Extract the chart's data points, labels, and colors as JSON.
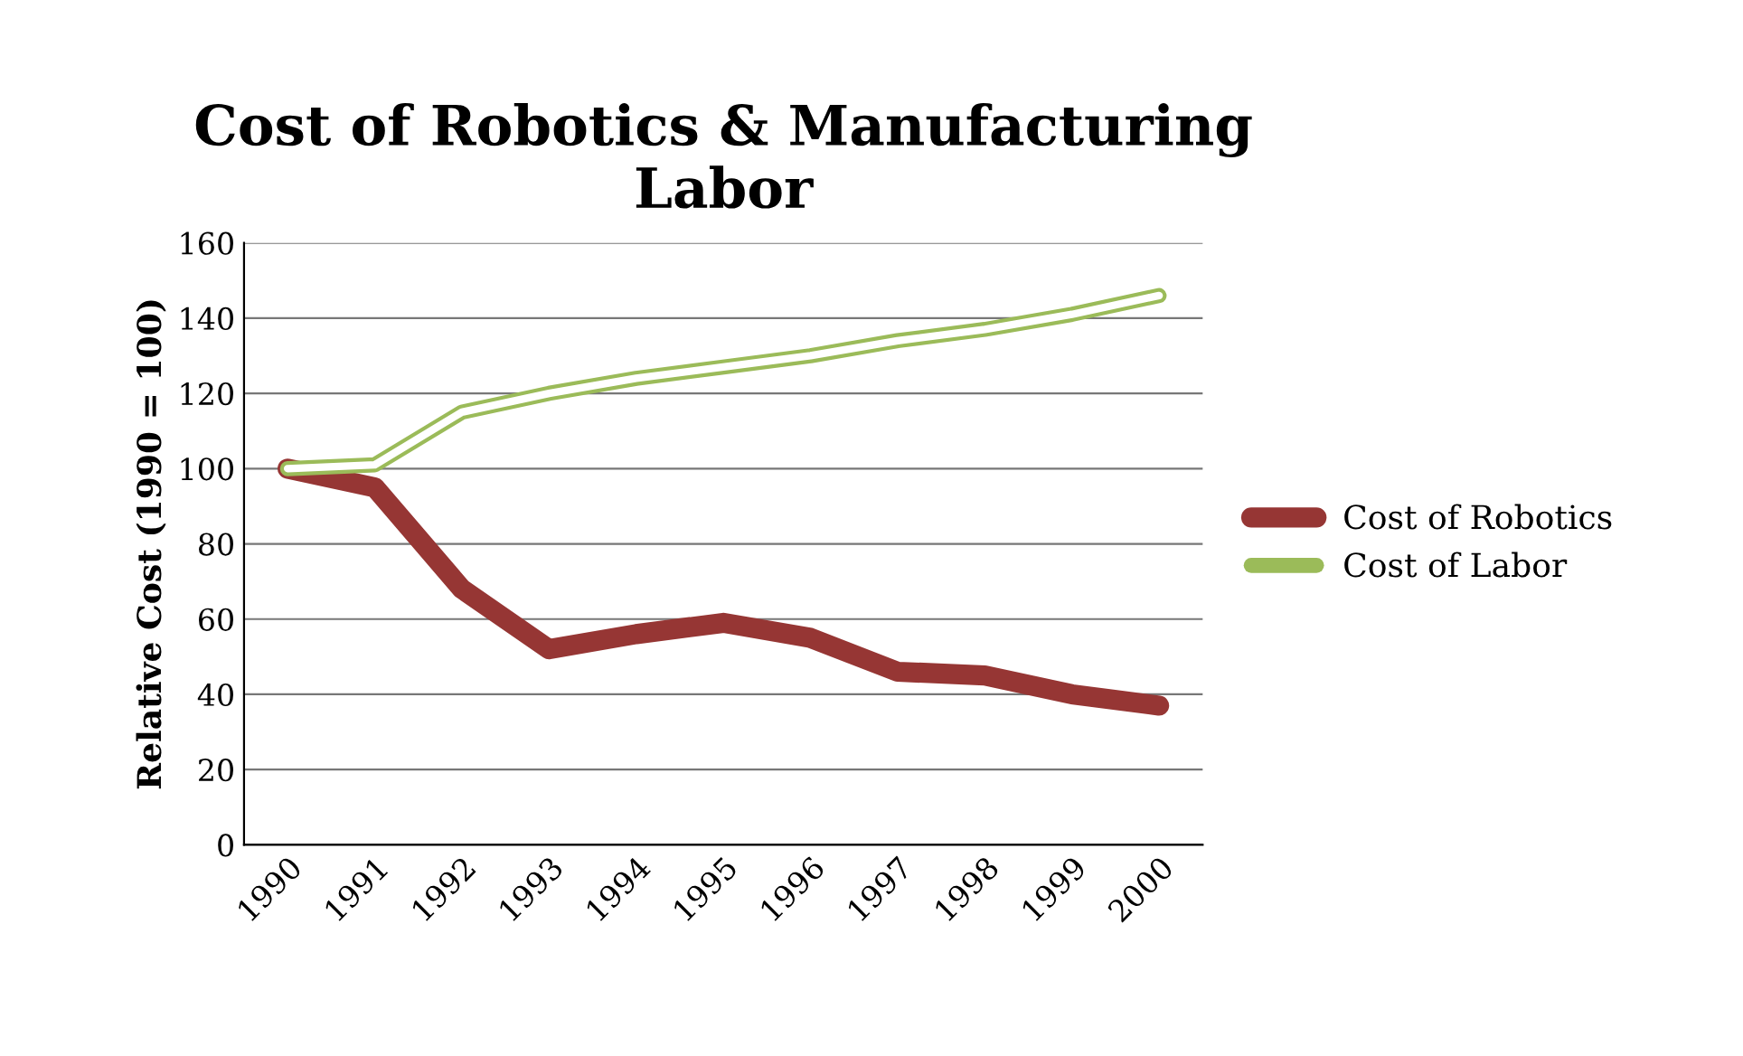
{
  "chart_data": {
    "type": "line",
    "title": "Cost of Robotics & Manufacturing\nLabor",
    "ylabel": "Relative Cost (1990 = 100)",
    "categories": [
      "1990",
      "1991",
      "1992",
      "1993",
      "1994",
      "1995",
      "1996",
      "1997",
      "1998",
      "1999",
      "2000"
    ],
    "series": [
      {
        "name": "Cost of Robotics",
        "color": "#963634",
        "values": [
          100,
          95,
          68,
          52,
          56,
          59,
          55,
          46,
          45,
          40,
          37
        ]
      },
      {
        "name": "Cost of Labor",
        "color": "#9bbb59",
        "values": [
          100,
          101,
          115,
          120,
          124,
          127,
          130,
          134,
          137,
          141,
          146
        ]
      }
    ],
    "ylim": [
      0,
      160
    ],
    "yticks": [
      0,
      20,
      40,
      60,
      80,
      100,
      120,
      140,
      160
    ],
    "grid": "y",
    "legend": "right",
    "marker": "none",
    "line_style": "solid"
  }
}
